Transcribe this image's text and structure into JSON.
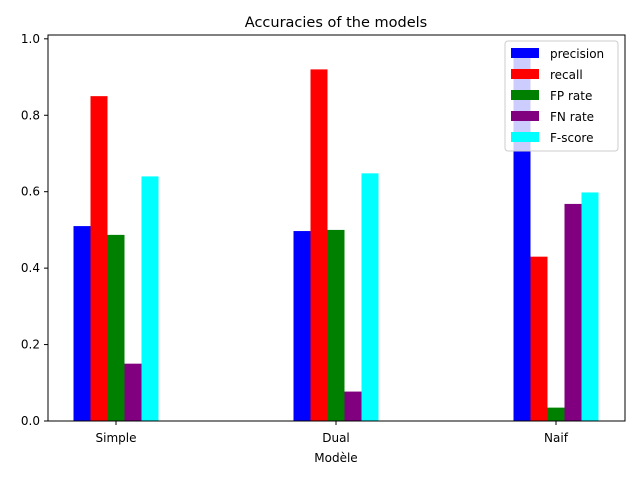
{
  "chart_data": {
    "type": "bar",
    "title": "Accuracies of the models",
    "xlabel": "Modèle",
    "ylabel": "",
    "categories": [
      "Simple",
      "Dual",
      "Naif"
    ],
    "series": [
      {
        "name": "precision",
        "color": "#0000ff",
        "values": [
          0.51,
          0.497,
          0.97
        ]
      },
      {
        "name": "recall",
        "color": "#ff0000",
        "values": [
          0.85,
          0.92,
          0.43
        ]
      },
      {
        "name": "FP rate",
        "color": "#008000",
        "values": [
          0.487,
          0.5,
          0.035
        ]
      },
      {
        "name": "FN rate",
        "color": "#800080",
        "values": [
          0.15,
          0.077,
          0.568
        ]
      },
      {
        "name": "F-score",
        "color": "#00ffff",
        "values": [
          0.64,
          0.648,
          0.598
        ]
      }
    ],
    "ylim": [
      0,
      1.01
    ],
    "yticks": [
      0.0,
      0.2,
      0.4,
      0.6,
      0.8,
      1.0
    ],
    "ytick_labels": [
      "0.0",
      "0.2",
      "0.4",
      "0.6",
      "0.8",
      "1.0"
    ],
    "grid": false,
    "legend_position": "top-right"
  }
}
